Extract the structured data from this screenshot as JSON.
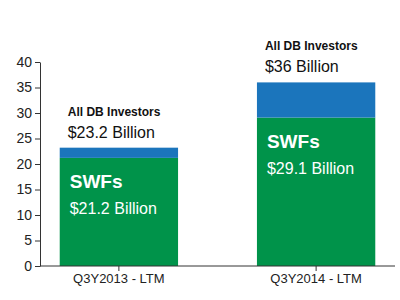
{
  "chart_data": {
    "type": "bar",
    "stacked": true,
    "data_labels": true,
    "categories": [
      "Q3Y2013 - LTM",
      "Q3Y2014 - LTM"
    ],
    "series": [
      {
        "name": "SWFs",
        "color": "#00934a",
        "values": [
          21.2,
          29.1
        ],
        "value_labels": [
          "$21.2 Billion",
          "$29.1 Billion"
        ]
      },
      {
        "color": "#1b75bc",
        "values": [
          2.0,
          6.9
        ]
      }
    ],
    "totals": {
      "label": "All DB Investors",
      "values": [
        23.2,
        36
      ],
      "value_labels": [
        "$23.2 Billion",
        "$36 Billion"
      ]
    },
    "ylim": [
      0,
      40
    ],
    "yticks": [
      0,
      5,
      10,
      15,
      20,
      25,
      30,
      35,
      40
    ],
    "grid": false
  }
}
